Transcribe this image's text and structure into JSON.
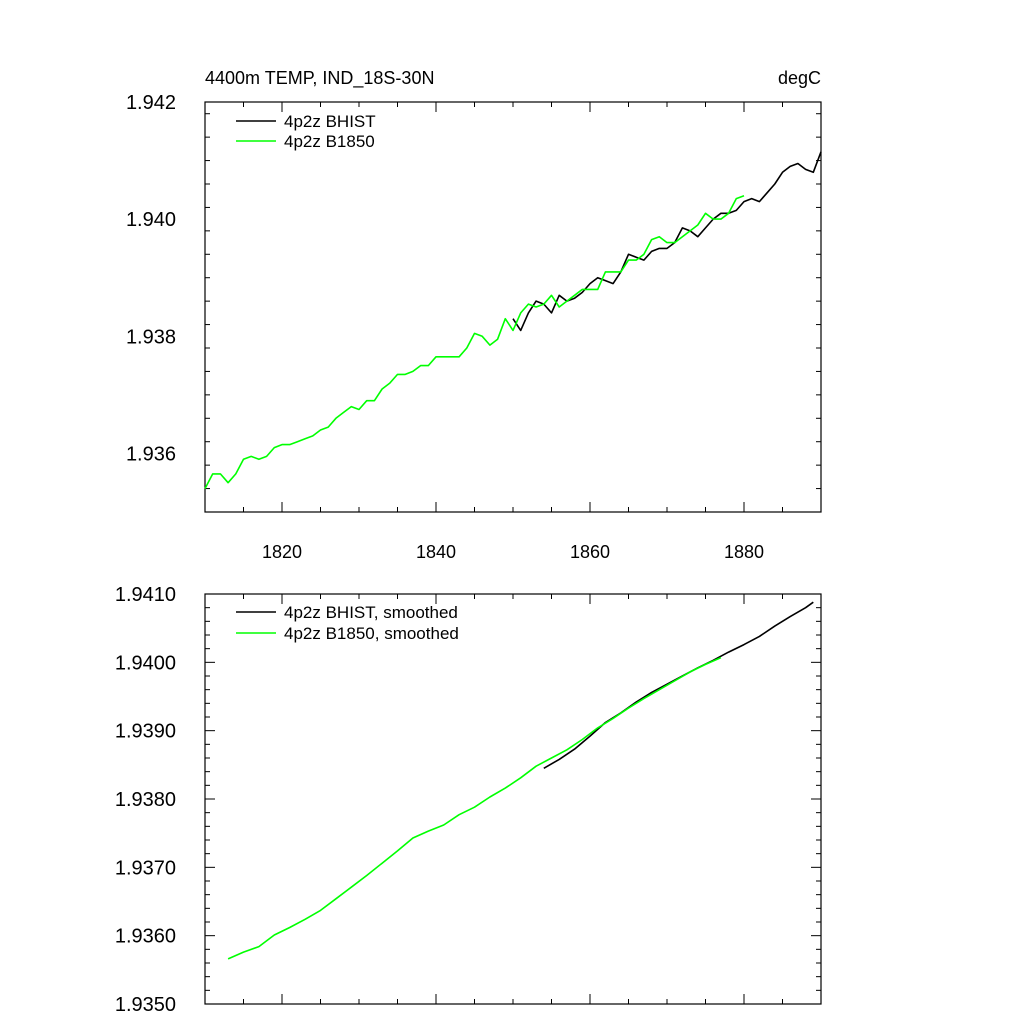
{
  "figure": {
    "title_left": "4400m TEMP, IND_18S-30N",
    "title_right": "degC"
  },
  "chart_data": [
    {
      "type": "line",
      "title": "4400m TEMP, IND_18S-30N",
      "units": "degC",
      "xlabel": "",
      "ylabel": "",
      "xlim": [
        1810,
        1890
      ],
      "ylim": [
        1.935,
        1.942
      ],
      "xticks": [
        1820,
        1840,
        1860,
        1880
      ],
      "xtick_labels": [
        "1820",
        "1840",
        "1860",
        "1880"
      ],
      "yticks": [
        1.936,
        1.938,
        1.94,
        1.942
      ],
      "ytick_labels": [
        "1.936",
        "1.938",
        "1.940",
        "1.942"
      ],
      "legend_position": "top-left",
      "series": [
        {
          "name": "4p2z BHIST",
          "color": "#000000",
          "x": [
            1850,
            1851,
            1852,
            1853,
            1854,
            1855,
            1856,
            1857,
            1858,
            1859,
            1860,
            1861,
            1862,
            1863,
            1864,
            1865,
            1866,
            1867,
            1868,
            1869,
            1870,
            1871,
            1872,
            1873,
            1874,
            1875,
            1876,
            1877,
            1878,
            1879,
            1880,
            1881,
            1882,
            1883,
            1884,
            1885,
            1886,
            1887,
            1888,
            1889,
            1890
          ],
          "values": [
            1.9383,
            1.9381,
            1.9384,
            1.9386,
            1.93855,
            1.9384,
            1.9387,
            1.9386,
            1.93865,
            1.93875,
            1.9389,
            1.939,
            1.93895,
            1.9389,
            1.9391,
            1.9394,
            1.93935,
            1.9393,
            1.93945,
            1.9395,
            1.9395,
            1.9396,
            1.93985,
            1.9398,
            1.9397,
            1.93985,
            1.94,
            1.9401,
            1.9401,
            1.94015,
            1.9403,
            1.94035,
            1.9403,
            1.94045,
            1.9406,
            1.9408,
            1.9409,
            1.94095,
            1.94085,
            1.9408,
            1.94115
          ]
        },
        {
          "name": "4p2z B1850",
          "color": "#00ff00",
          "x": [
            1810,
            1811,
            1812,
            1813,
            1814,
            1815,
            1816,
            1817,
            1818,
            1819,
            1820,
            1821,
            1822,
            1823,
            1824,
            1825,
            1826,
            1827,
            1828,
            1829,
            1830,
            1831,
            1832,
            1833,
            1834,
            1835,
            1836,
            1837,
            1838,
            1839,
            1840,
            1841,
            1842,
            1843,
            1844,
            1845,
            1846,
            1847,
            1848,
            1849,
            1850,
            1851,
            1852,
            1853,
            1854,
            1855,
            1856,
            1857,
            1858,
            1859,
            1860,
            1861,
            1862,
            1863,
            1864,
            1865,
            1866,
            1867,
            1868,
            1869,
            1870,
            1871,
            1872,
            1873,
            1874,
            1875,
            1876,
            1877,
            1878,
            1879,
            1880
          ],
          "values": [
            1.9354,
            1.93565,
            1.93565,
            1.9355,
            1.93565,
            1.9359,
            1.93595,
            1.9359,
            1.93595,
            1.9361,
            1.93615,
            1.93615,
            1.9362,
            1.93625,
            1.9363,
            1.9364,
            1.93645,
            1.9366,
            1.9367,
            1.9368,
            1.93675,
            1.9369,
            1.9369,
            1.9371,
            1.9372,
            1.93735,
            1.93735,
            1.9374,
            1.9375,
            1.9375,
            1.93765,
            1.93765,
            1.93765,
            1.93765,
            1.9378,
            1.93805,
            1.938,
            1.93785,
            1.93795,
            1.9383,
            1.9381,
            1.9384,
            1.93855,
            1.9385,
            1.93855,
            1.9387,
            1.9385,
            1.9386,
            1.9387,
            1.9388,
            1.9388,
            1.9388,
            1.9391,
            1.9391,
            1.9391,
            1.9393,
            1.9393,
            1.9394,
            1.93965,
            1.9397,
            1.9396,
            1.9396,
            1.9397,
            1.9398,
            1.9399,
            1.9401,
            1.94,
            1.94,
            1.9401,
            1.94035,
            1.9404
          ]
        }
      ]
    },
    {
      "type": "line",
      "title": "",
      "xlabel": "",
      "ylabel": "",
      "xlim": [
        1810,
        1890
      ],
      "ylim": [
        1.935,
        1.941
      ],
      "xticks": [
        1820,
        1840,
        1860,
        1880
      ],
      "xtick_labels": [],
      "yticks": [
        1.935,
        1.936,
        1.937,
        1.938,
        1.939,
        1.94,
        1.941
      ],
      "ytick_labels": [
        "1.9350",
        "1.9360",
        "1.9370",
        "1.9380",
        "1.9390",
        "1.9400",
        "1.9410"
      ],
      "legend_position": "top-left",
      "series": [
        {
          "name": "4p2z BHIST, smoothed",
          "color": "#000000",
          "x": [
            1854,
            1856,
            1858,
            1860,
            1862,
            1864,
            1866,
            1868,
            1870,
            1872,
            1874,
            1876,
            1878,
            1880,
            1882,
            1884,
            1886,
            1888,
            1889
          ],
          "values": [
            1.93845,
            1.93858,
            1.93873,
            1.93892,
            1.93912,
            1.93926,
            1.93942,
            1.93956,
            1.93968,
            1.9398,
            1.93992,
            1.94003,
            1.94015,
            1.94026,
            1.94038,
            1.94053,
            1.94067,
            1.9408,
            1.94088
          ]
        },
        {
          "name": "4p2z B1850, smoothed",
          "color": "#00ff00",
          "x": [
            1813,
            1815,
            1817,
            1819,
            1821,
            1823,
            1825,
            1827,
            1829,
            1831,
            1833,
            1835,
            1837,
            1839,
            1841,
            1843,
            1845,
            1847,
            1849,
            1851,
            1853,
            1855,
            1857,
            1859,
            1861,
            1863,
            1865,
            1867,
            1869,
            1871,
            1873,
            1875,
            1877
          ],
          "values": [
            1.93566,
            1.93576,
            1.93584,
            1.93601,
            1.93612,
            1.93624,
            1.93637,
            1.93654,
            1.93671,
            1.93688,
            1.93706,
            1.93724,
            1.93743,
            1.93753,
            1.93762,
            1.93777,
            1.93788,
            1.93803,
            1.93816,
            1.93831,
            1.93848,
            1.9386,
            1.93872,
            1.93887,
            1.93904,
            1.93918,
            1.93933,
            1.93947,
            1.9396,
            1.93973,
            1.93986,
            1.93997,
            1.94007
          ]
        }
      ]
    }
  ]
}
